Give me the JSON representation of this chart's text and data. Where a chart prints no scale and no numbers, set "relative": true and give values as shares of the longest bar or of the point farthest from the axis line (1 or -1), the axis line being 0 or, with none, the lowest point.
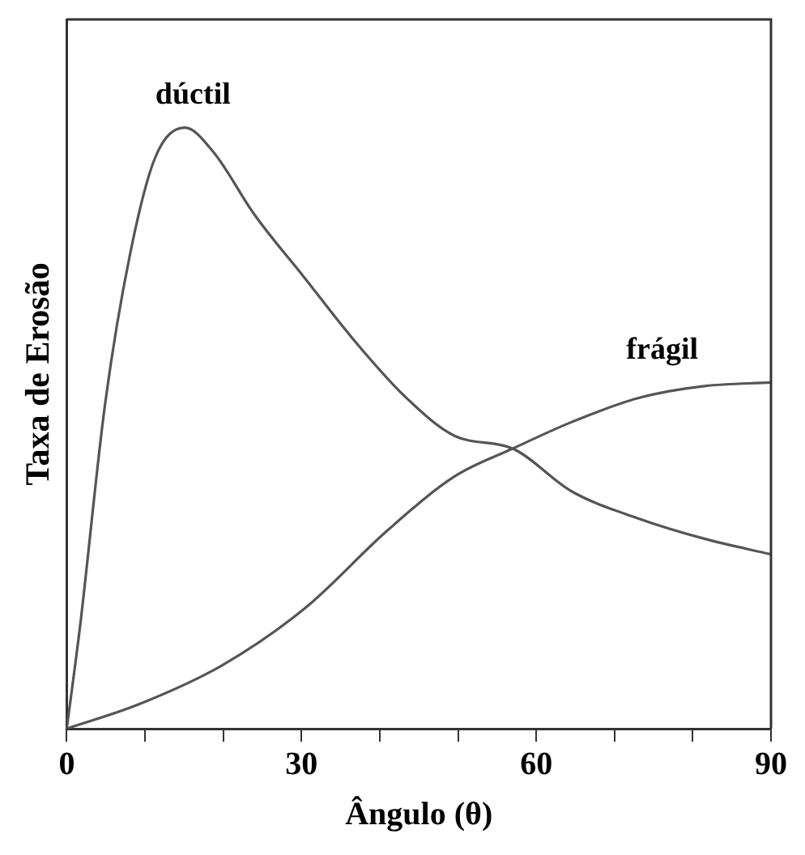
{
  "chart_data": {
    "type": "line",
    "xlabel": "Ângulo (θ)",
    "ylabel": "Taxa de Erosão",
    "relative": true,
    "xlim": [
      0,
      90
    ],
    "xticks": [
      0,
      {
        "value": 10,
        "label": null
      },
      {
        "value": 20,
        "label": null
      },
      30,
      {
        "value": 40,
        "label": null
      },
      {
        "value": 50,
        "label": null
      },
      60,
      {
        "value": 70,
        "label": null
      },
      {
        "value": 80,
        "label": null
      },
      90
    ],
    "grid": false,
    "legend": false,
    "marker": "none",
    "line_style": "solid",
    "series": [
      {
        "name": "dúctil",
        "color": "#555555",
        "x": [
          0,
          1.7,
          4.9,
          8.1,
          11.3,
          15.1,
          18.7,
          24,
          30.4,
          36.8,
          43.2,
          49.6,
          57,
          64.5,
          73,
          81.5,
          90
        ],
        "values": [
          0,
          0.17,
          0.54,
          0.79,
          0.95,
          1,
          0.96,
          0.855,
          0.75,
          0.645,
          0.553,
          0.487,
          0.466,
          0.395,
          0.35,
          0.316,
          0.29
        ]
      },
      {
        "name": "frágil",
        "color": "#555555",
        "x": [
          0,
          9.1,
          19.8,
          30.4,
          41,
          49.6,
          57,
          64.5,
          73,
          81.5,
          90
        ],
        "values": [
          0,
          0.04,
          0.105,
          0.2,
          0.33,
          0.42,
          0.466,
          0.51,
          0.55,
          0.57,
          0.576
        ]
      }
    ]
  }
}
